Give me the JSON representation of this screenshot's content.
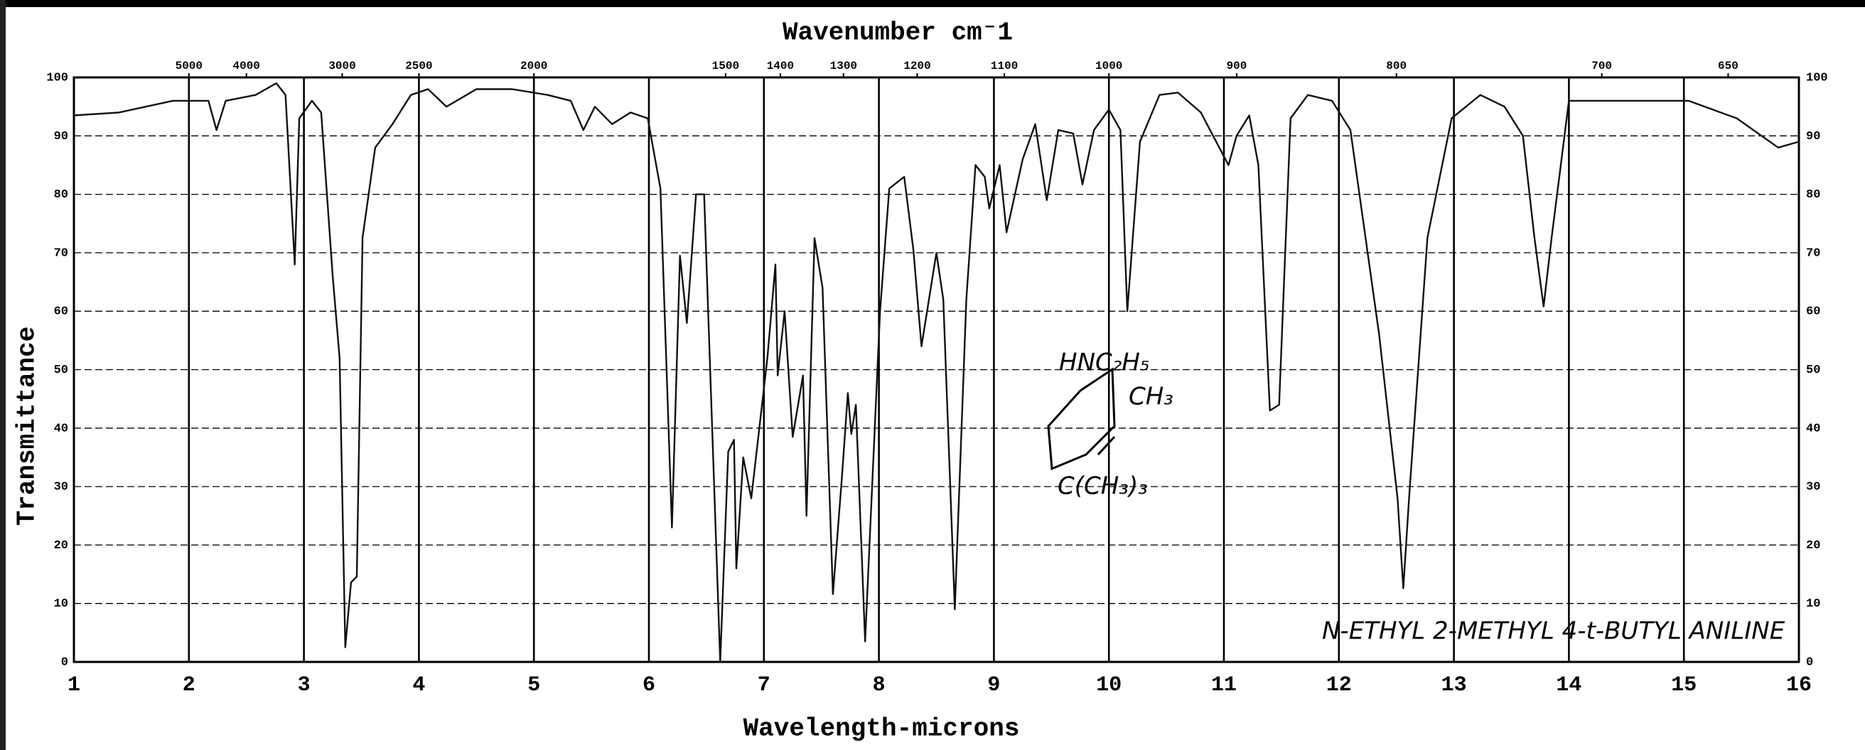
{
  "chart_data": {
    "type": "line",
    "title": "Wavenumber cm⁻1",
    "x_label": "Wavelength-microns",
    "y_label": "Transmittance",
    "annotations": [
      "N-ETHYL 2-METHYL 4-t-BUTYL ANILINE",
      "HNC₂H₅",
      "CH₃",
      "C(CH₃)₃"
    ],
    "color": "#111111",
    "xlim": [
      1,
      16
    ],
    "ylim": [
      0,
      100
    ],
    "xticks": [
      1,
      2,
      3,
      4,
      5,
      6,
      7,
      8,
      9,
      10,
      11,
      12,
      13,
      14,
      15,
      16
    ],
    "yticks": [
      0,
      10,
      20,
      30,
      40,
      50,
      60,
      70,
      80,
      90,
      100
    ],
    "x2ticks": [
      5000,
      4000,
      3000,
      2500,
      2000,
      1500,
      1400,
      1300,
      1200,
      1100,
      1000,
      900,
      800,
      700,
      650
    ],
    "x2scale": "reciprocal",
    "grid": true,
    "x": [
      1.0,
      1.39,
      1.86,
      2.17,
      2.24,
      2.32,
      2.58,
      2.76,
      2.84,
      2.92,
      2.96,
      3.07,
      3.15,
      3.25,
      3.31,
      3.36,
      3.41,
      3.46,
      3.51,
      3.62,
      3.77,
      3.93,
      4.08,
      4.24,
      4.5,
      4.81,
      5.12,
      5.32,
      5.43,
      5.53,
      5.68,
      5.84,
      5.99,
      6.1,
      6.2,
      6.27,
      6.33,
      6.41,
      6.48,
      6.62,
      6.69,
      6.74,
      6.76,
      6.82,
      6.89,
      7.03,
      7.1,
      7.12,
      7.18,
      7.25,
      7.34,
      7.37,
      7.44,
      7.51,
      7.6,
      7.68,
      7.73,
      7.76,
      7.8,
      7.88,
      8.01,
      8.09,
      8.22,
      8.3,
      8.37,
      8.5,
      8.56,
      8.66,
      8.76,
      8.84,
      8.92,
      8.96,
      9.05,
      9.11,
      9.25,
      9.36,
      9.46,
      9.56,
      9.69,
      9.77,
      9.87,
      10.0,
      10.1,
      10.16,
      10.27,
      10.44,
      10.6,
      10.8,
      10.96,
      11.04,
      11.11,
      11.22,
      11.3,
      11.4,
      11.48,
      11.58,
      11.73,
      11.94,
      12.1,
      12.35,
      12.51,
      12.56,
      12.61,
      12.77,
      12.98,
      13.23,
      13.44,
      13.6,
      13.7,
      13.78,
      13.85,
      14.0,
      14.63,
      15.04,
      15.46,
      15.82,
      16.0
    ],
    "values": [
      93.5,
      94,
      96,
      96,
      91,
      96,
      97,
      99,
      97,
      68,
      93,
      96,
      94,
      66,
      52,
      2.5,
      13.6,
      14.6,
      72.6,
      88,
      92,
      97,
      98,
      95,
      98,
      98,
      97,
      96,
      91,
      95,
      92,
      94,
      93,
      81,
      23,
      69.5,
      58,
      80,
      80,
      0,
      36,
      38,
      16,
      35,
      28,
      52,
      68,
      49,
      60,
      38.5,
      49,
      25,
      72.5,
      64,
      11.6,
      32,
      46,
      39,
      44,
      3.5,
      60,
      81,
      83,
      70.5,
      54,
      70,
      62,
      9,
      62,
      85,
      83,
      77.6,
      85,
      73.5,
      86,
      92,
      79,
      91,
      90.4,
      81.7,
      91,
      94.5,
      91,
      60,
      89,
      97,
      97.4,
      94,
      88,
      85,
      90,
      93.5,
      85,
      43,
      44,
      93,
      97,
      96,
      91,
      56,
      28,
      12.6,
      28,
      72.6,
      93,
      97,
      95,
      90,
      72.6,
      60.8,
      72.6,
      96,
      96,
      96,
      93,
      88,
      89
    ]
  }
}
